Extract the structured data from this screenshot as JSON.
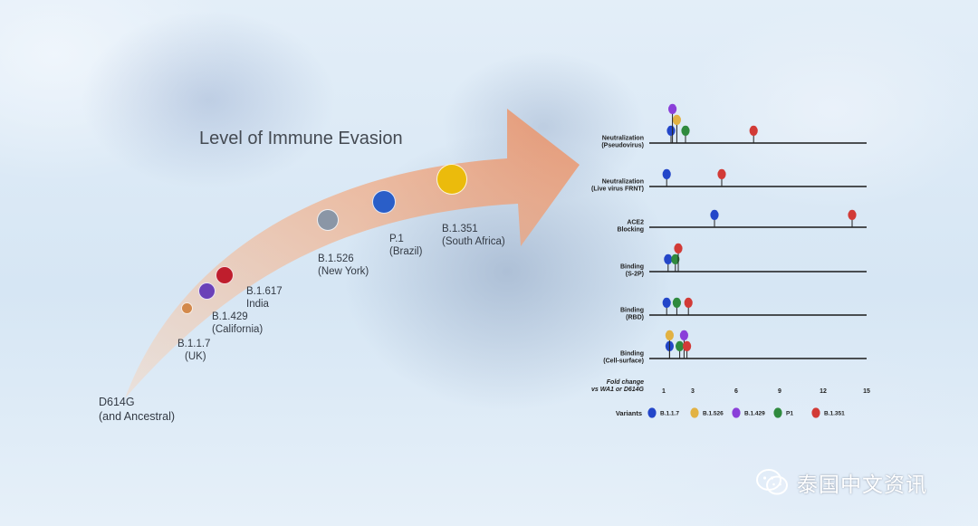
{
  "evasion_panel": {
    "title": "Level of Immune Evasion",
    "variants": [
      {
        "label_line1": "D614G",
        "label_line2": "(and Ancestral)",
        "color": ""
      },
      {
        "label_line1": "B.1.1.7",
        "label_line2": "(UK)",
        "color": "#d3894b"
      },
      {
        "label_line1": "B.1.429",
        "label_line2": "(California)",
        "color": "#6a40b8"
      },
      {
        "label_line1": "B.1.617",
        "label_line2": "India",
        "color": "#bf1e2d"
      },
      {
        "label_line1": "B.1.526",
        "label_line2": "(New York)",
        "color": "#8a96a6"
      },
      {
        "label_line1": "P.1",
        "label_line2": "(Brazil)",
        "color": "#2a5ec8"
      },
      {
        "label_line1": "B.1.351",
        "label_line2": "(South Africa)",
        "color": "#ebbb0c"
      }
    ]
  },
  "chart_data": {
    "type": "scatter",
    "xlabel_line1": "Fold change",
    "xlabel_line2": "vs WA1 or D614G",
    "xlim": [
      0,
      15
    ],
    "x_ticks": [
      1,
      3,
      6,
      9,
      12,
      15
    ],
    "colors": {
      "B.1.1.7": "#2346c9",
      "B.1.526": "#e2b243",
      "B.1.429": "#8a3fd9",
      "P1": "#2f8a3e",
      "B.1.351": "#d23a36"
    },
    "rows": [
      {
        "label_line1": "Neutralization",
        "label_line2": "(Pseudovirus)",
        "points": [
          {
            "series": "B.1.1.7",
            "x": 1.5
          },
          {
            "series": "B.1.526",
            "x": 1.9
          },
          {
            "series": "B.1.429",
            "x": 1.6
          },
          {
            "series": "P1",
            "x": 2.5
          },
          {
            "series": "B.1.351",
            "x": 7.2
          }
        ]
      },
      {
        "label_line1": "Neutralization",
        "label_line2": "(Live virus FRNT)",
        "points": [
          {
            "series": "B.1.1.7",
            "x": 1.2
          },
          {
            "series": "B.1.351",
            "x": 5.0
          }
        ]
      },
      {
        "label_line1": "ACE2",
        "label_line2": "Blocking",
        "points": [
          {
            "series": "B.1.1.7",
            "x": 4.5
          },
          {
            "series": "B.1.351",
            "x": 14.0
          }
        ]
      },
      {
        "label_line1": "Binding",
        "label_line2": "(S-2P)",
        "points": [
          {
            "series": "B.1.1.7",
            "x": 1.3
          },
          {
            "series": "P1",
            "x": 1.8
          },
          {
            "series": "B.1.351",
            "x": 2.0
          }
        ]
      },
      {
        "label_line1": "Binding",
        "label_line2": "(RBD)",
        "points": [
          {
            "series": "B.1.1.7",
            "x": 1.2
          },
          {
            "series": "P1",
            "x": 1.9
          },
          {
            "series": "B.1.351",
            "x": 2.7
          }
        ]
      },
      {
        "label_line1": "Binding",
        "label_line2": "(Cell-surface)",
        "points": [
          {
            "series": "B.1.1.7",
            "x": 1.4
          },
          {
            "series": "B.1.526",
            "x": 1.4
          },
          {
            "series": "P1",
            "x": 2.1
          },
          {
            "series": "B.1.429",
            "x": 2.4
          },
          {
            "series": "B.1.351",
            "x": 2.6
          }
        ]
      }
    ],
    "legend": {
      "title": "Variants",
      "placement": "bottom",
      "entries": [
        "B.1.1.7",
        "B.1.526",
        "B.1.429",
        "P1",
        "B.1.351"
      ]
    }
  },
  "watermark": {
    "text": "泰国中文资讯",
    "icon": "wechat-icon"
  }
}
